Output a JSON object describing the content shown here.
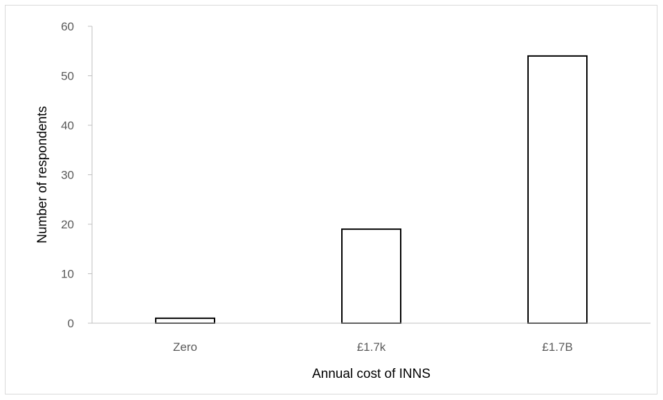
{
  "chart_data": {
    "type": "bar",
    "title": "",
    "xlabel": "Annual cost of INNS",
    "ylabel": "Number of respondents",
    "categories": [
      "Zero",
      "£1.7k",
      "£1.7B"
    ],
    "values": [
      1,
      19,
      54
    ],
    "ylim": [
      0,
      60
    ],
    "yticks": [
      0,
      10,
      20,
      30,
      40,
      50,
      60
    ],
    "grid": false,
    "legend": "none",
    "bar_fill": "#ffffff",
    "bar_stroke": "#000000",
    "axis_color": "#bfbfbf",
    "tick_label_color": "#595959"
  }
}
